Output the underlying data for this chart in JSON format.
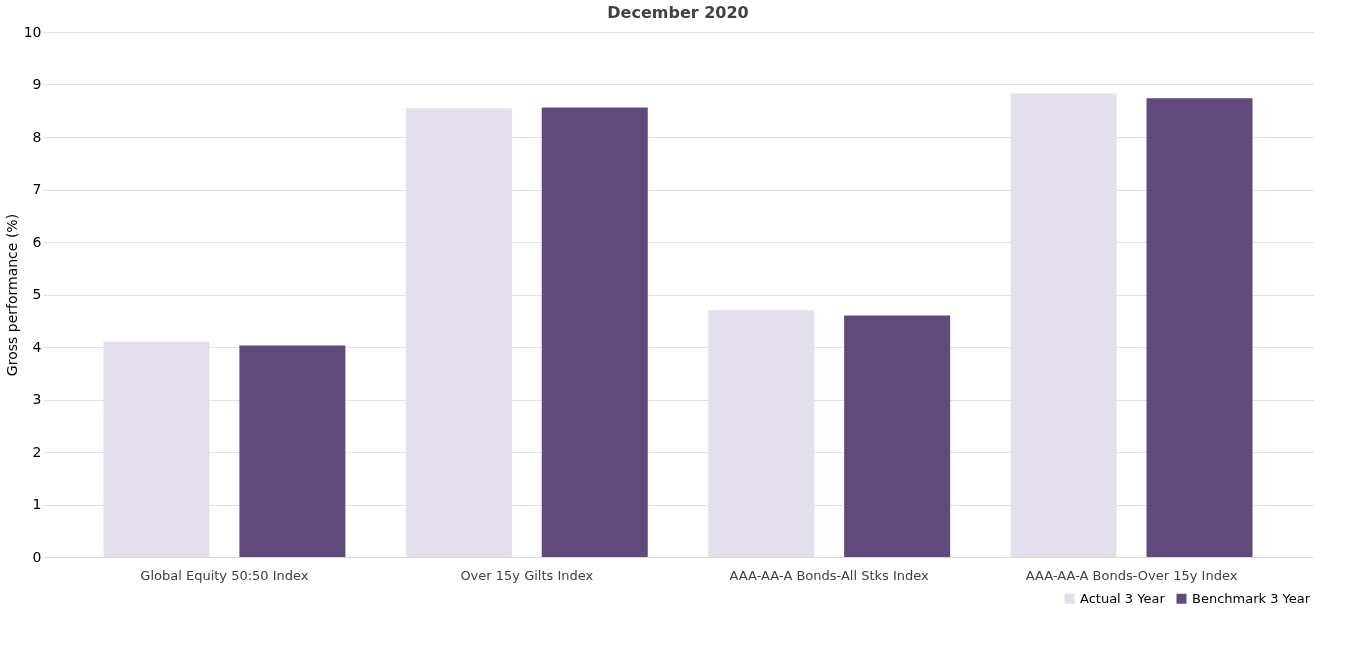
{
  "chart_data": {
    "type": "bar",
    "title": "December 2020",
    "ylabel": "Gross performance (%)",
    "categories": [
      "Global Equity 50:50 Index",
      "Over 15y Gilts Index",
      "AAA-AA-A Bonds-All Stks Index",
      "AAA-AA-A Bonds-Over 15y Index"
    ],
    "series": [
      {
        "name": "Actual 3 Year",
        "color": "#e4dfec",
        "values": [
          4.1,
          8.55,
          4.7,
          8.83
        ]
      },
      {
        "name": "Benchmark 3 Year",
        "color": "#604a7b",
        "values": [
          4.03,
          8.56,
          4.6,
          8.74
        ]
      }
    ],
    "ylim": [
      0,
      10
    ],
    "yticks": [
      0,
      1,
      2,
      3,
      4,
      5,
      6,
      7,
      8,
      9,
      10
    ],
    "grid": "y",
    "legend": "bottom right"
  }
}
